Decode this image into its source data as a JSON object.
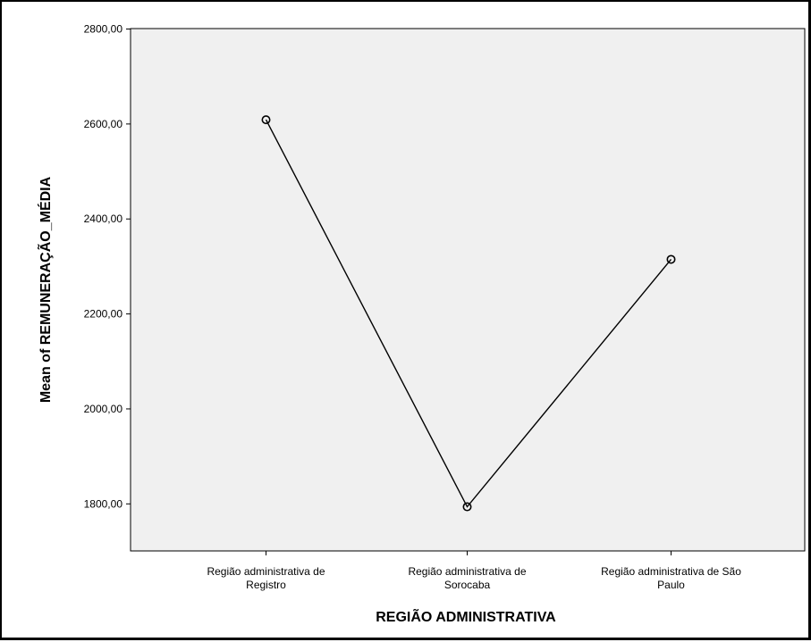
{
  "chart_data": {
    "type": "line",
    "title": "",
    "xlabel": "REGIÃO ADMINISTRATIVA",
    "ylabel": "Mean of REMUNERAÇÃO_MÉDIA",
    "categories": [
      [
        "Região administrativa de",
        "Registro"
      ],
      [
        "Região administrativa de",
        "Sorocaba"
      ],
      [
        "Região administrativa de São",
        "Paulo"
      ]
    ],
    "series": [
      {
        "values": [
          2608,
          1793,
          2314
        ]
      }
    ],
    "ylim": [
      1700,
      2800
    ],
    "yticks": [
      1800,
      2000,
      2200,
      2400,
      2600,
      2800
    ],
    "ytick_labels": [
      "1800,00",
      "2000,00",
      "2200,00",
      "2400,00",
      "2600,00",
      "2800,00"
    ],
    "grid": false,
    "legend": "none",
    "marker": "open-circle",
    "colors": {
      "plot_background": "#f0f0f0",
      "line": "#000000",
      "axis": "#000000"
    }
  }
}
